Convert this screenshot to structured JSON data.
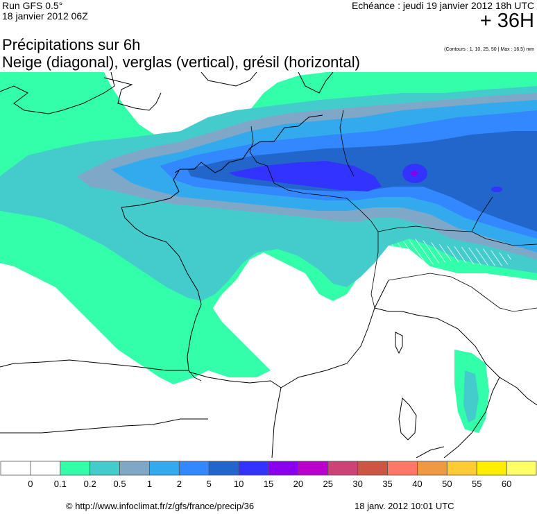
{
  "header": {
    "run": "Run GFS 0.5°",
    "run_date": "18 janvier 2012 06Z",
    "echeance": "Echéance : jeudi 19 janvier 2012 18h UTC",
    "lead": "+ 36H",
    "title": "Précipitations sur 6h",
    "subtitle": "Neige (diagonal), verglas (vertical), grésil (horizontal)",
    "contours": "(Contours : 1, 10, 25, 50 | Max : 16.5) mm"
  },
  "legend": {
    "labels": [
      "0",
      "0.1",
      "0.2",
      "0.5",
      "1",
      "2",
      "5",
      "10",
      "15",
      "20",
      "25",
      "30",
      "35",
      "40",
      "50",
      "55",
      "60"
    ],
    "colors": [
      "#ffffff",
      "#ffffff",
      "#33ffaa",
      "#44cccc",
      "#7fa8c8",
      "#33aaee",
      "#3388ff",
      "#2266cc",
      "#3333ff",
      "#8800ee",
      "#bb00cc",
      "#cc4477",
      "#cc5544",
      "#ff7766",
      "#ee9944",
      "#ffcc33",
      "#ffee00",
      "#ffff66"
    ]
  },
  "footer": {
    "url": "© http://www.infoclimat.fr/z/gfs/france/precip/36",
    "date": "18 janv. 2012 10:01 UTC"
  }
}
